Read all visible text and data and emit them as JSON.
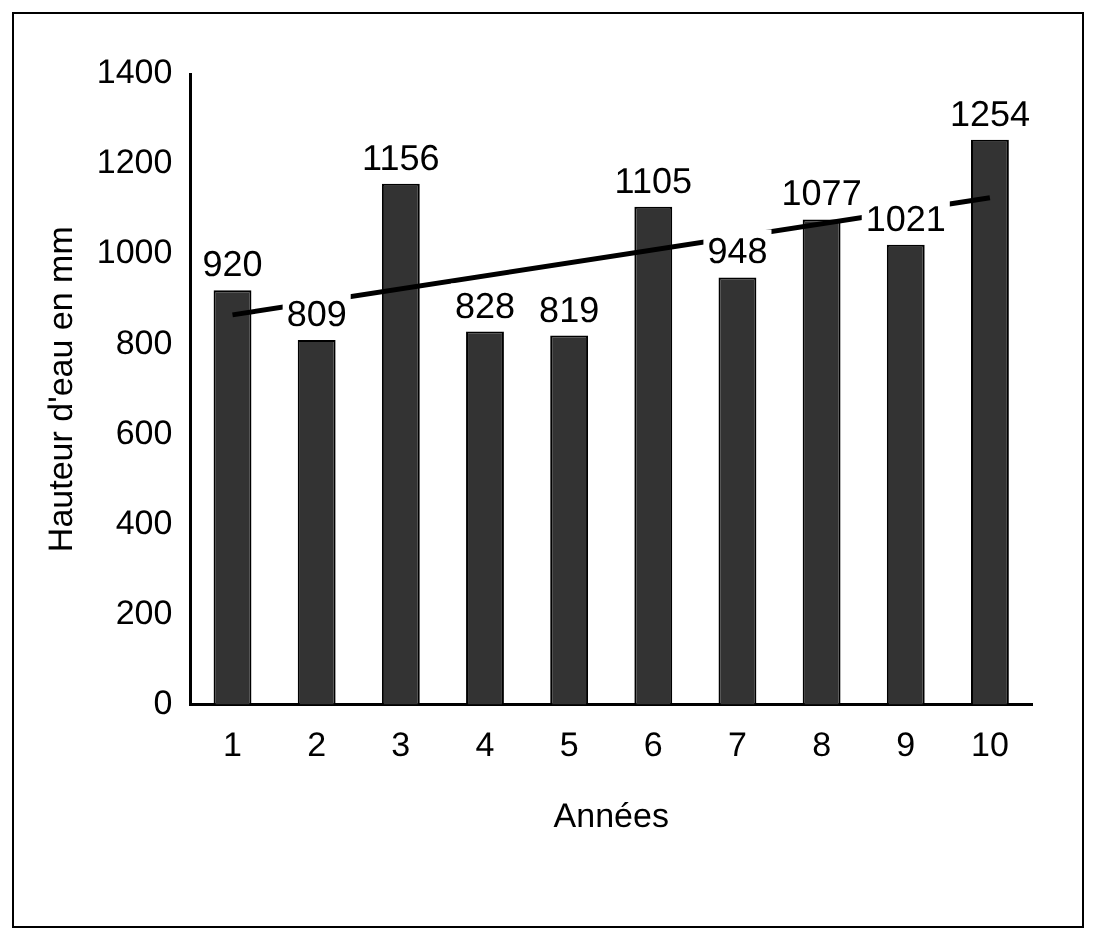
{
  "chart_data": {
    "type": "bar",
    "xlabel": "Années",
    "ylabel": "Hauteur d'eau en mm",
    "categories": [
      "1",
      "2",
      "3",
      "4",
      "5",
      "6",
      "7",
      "8",
      "9",
      "10"
    ],
    "series": [
      {
        "color": "#333333",
        "values": [
          920,
          809,
          1156,
          828,
          819,
          1105,
          948,
          1077,
          1021,
          1254
        ],
        "value_labels": [
          "920",
          "809",
          "1156",
          "828",
          "819",
          "1105",
          "948",
          "1077",
          "1021",
          "1254"
        ]
      },
      {
        "type": "line",
        "color": "#000000",
        "x": [
          "1",
          "10"
        ],
        "values": [
          865,
          1125
        ],
        "marker": "none",
        "line_style": "solid"
      }
    ],
    "ylim": [
      0,
      1400
    ],
    "yticks": [
      0,
      200,
      400,
      600,
      800,
      1000,
      1200,
      1400
    ],
    "grid": false,
    "legend": false
  }
}
